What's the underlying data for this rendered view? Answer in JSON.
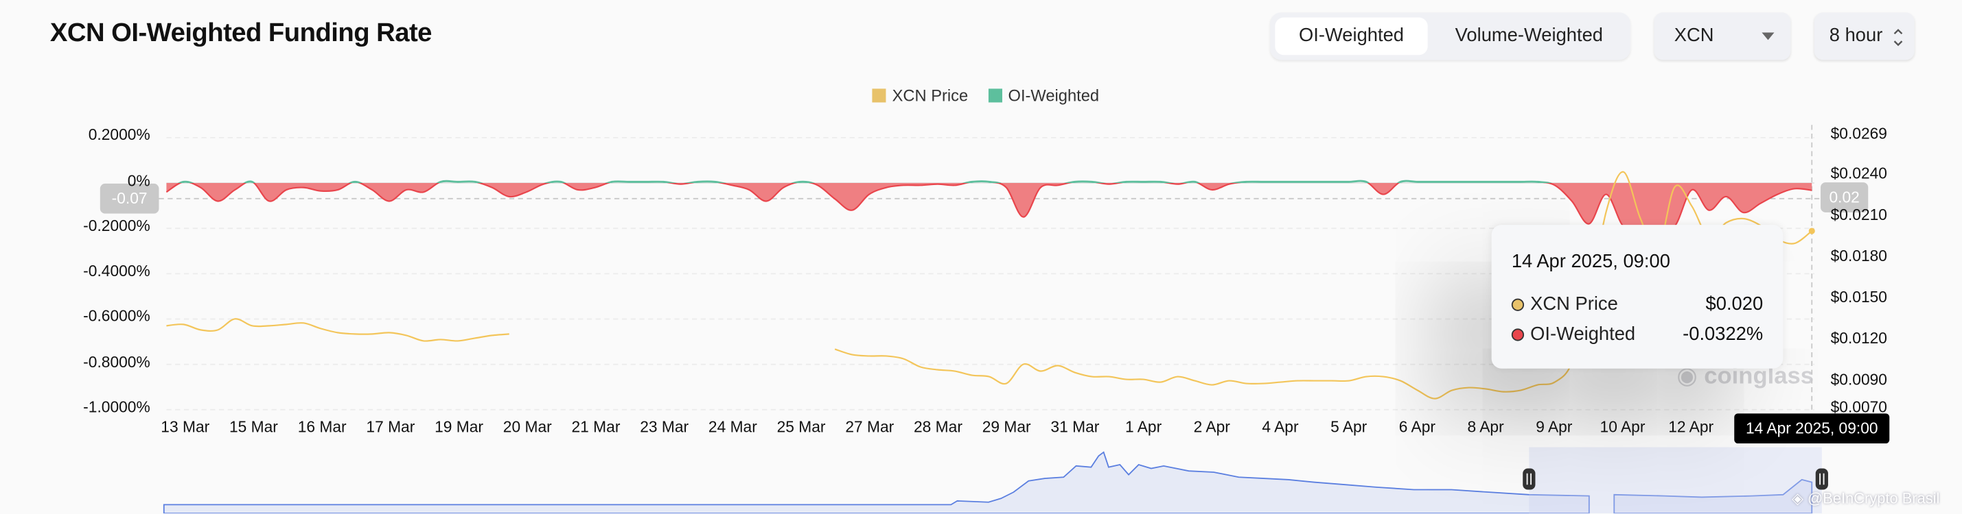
{
  "header": {
    "title": "XCN OI-Weighted Funding Rate",
    "toggle": {
      "options": [
        "OI-Weighted",
        "Volume-Weighted"
      ],
      "active": "OI-Weighted"
    },
    "symbol_select": {
      "value": "XCN",
      "icon": "caret-down-icon"
    },
    "interval_select": {
      "value": "8 hour",
      "icon": "updown-chevron-icon"
    }
  },
  "colors": {
    "price": "#f3c55a",
    "positive": "#5dbf9d",
    "negative": "#e9454c",
    "negative_fill": "#ef7f82",
    "navigator": "#5b7fe0"
  },
  "crosshair": {
    "left_value": "-0.07",
    "right_value": "0.02",
    "x_label": "14 Apr 2025, 09:00"
  },
  "tooltip": {
    "title": "14 Apr 2025, 09:00",
    "rows": [
      {
        "label": "XCN Price",
        "value": "$0.020",
        "color": "#f3c55a"
      },
      {
        "label": "OI-Weighted",
        "value": "-0.0322%",
        "color": "#e9454c"
      }
    ]
  },
  "watermarks": {
    "coinglass": "coinglass",
    "beincrypto": "@BeInCrypto Brasil"
  },
  "chart_data": {
    "type": "area+line",
    "legend": [
      "XCN Price",
      "OI-Weighted"
    ],
    "legend_position": "top",
    "grid": true,
    "x_ticks": [
      "13 Mar",
      "15 Mar",
      "16 Mar",
      "17 Mar",
      "19 Mar",
      "20 Mar",
      "21 Mar",
      "23 Mar",
      "24 Mar",
      "25 Mar",
      "27 Mar",
      "28 Mar",
      "29 Mar",
      "31 Mar",
      "1 Apr",
      "2 Apr",
      "4 Apr",
      "5 Apr",
      "6 Apr",
      "8 Apr",
      "9 Apr",
      "10 Apr",
      "12 Apr"
    ],
    "y_left": {
      "ticks": [
        "0.2000%",
        "0%",
        "-0.2000%",
        "-0.4000%",
        "-0.6000%",
        "-0.8000%",
        "-1.0000%"
      ],
      "range": [
        -1.0,
        0.2
      ]
    },
    "y_right": {
      "ticks": [
        "$0.0269",
        "$0.0240",
        "$0.0210",
        "$0.0180",
        "$0.0150",
        "$0.0120",
        "$0.0090",
        "$0.0070"
      ],
      "range": [
        0.007,
        0.0269
      ]
    },
    "series": [
      {
        "name": "OI-Weighted",
        "axis": "left",
        "unit": "%",
        "values": [
          -0.04,
          0.005,
          -0.02,
          -0.08,
          -0.03,
          0.005,
          -0.08,
          -0.03,
          -0.02,
          -0.035,
          -0.03,
          0.005,
          -0.03,
          -0.08,
          -0.03,
          -0.04,
          0.005,
          0.005,
          0.005,
          -0.02,
          -0.06,
          -0.04,
          -0.005,
          0.005,
          -0.03,
          -0.02,
          0.005,
          0.005,
          0.005,
          0.005,
          -0.005,
          0.005,
          0.005,
          -0.01,
          -0.03,
          -0.08,
          -0.02,
          0.005,
          -0.01,
          -0.07,
          -0.12,
          -0.05,
          -0.02,
          -0.01,
          -0.01,
          -0.005,
          -0.01,
          0.005,
          0.005,
          -0.02,
          -0.15,
          -0.02,
          -0.01,
          0.005,
          0.005,
          -0.005,
          0.005,
          0.005,
          0.005,
          -0.005,
          0.005,
          -0.03,
          -0.005,
          0.005,
          0.005,
          0.005,
          0.005,
          0.005,
          0.005,
          0.005,
          0.005,
          -0.05,
          0.005,
          0.005,
          0.005,
          0.005,
          0.005,
          0.005,
          0.005,
          0.005,
          0.005,
          -0.01,
          -0.08,
          -0.18,
          -0.05,
          -0.19,
          -0.19,
          -0.19,
          -0.19,
          -0.03,
          -0.12,
          -0.06,
          -0.13,
          -0.09,
          -0.05,
          -0.025,
          -0.0322
        ]
      },
      {
        "name": "XCN Price",
        "axis": "right",
        "unit": "$",
        "values": [
          0.0131,
          0.0132,
          0.0128,
          0.0128,
          0.0136,
          0.0131,
          0.0131,
          0.0132,
          0.0133,
          0.0129,
          0.0126,
          0.0125,
          0.0125,
          0.0126,
          0.0124,
          0.012,
          0.0121,
          0.012,
          0.0122,
          0.0124,
          0.0125,
          null,
          null,
          null,
          null,
          null,
          null,
          null,
          null,
          null,
          null,
          null,
          null,
          null,
          null,
          null,
          null,
          null,
          null,
          0.0114,
          0.011,
          0.0109,
          0.0109,
          0.0107,
          0.0101,
          0.0099,
          0.0098,
          0.0095,
          0.0094,
          0.0089,
          0.0103,
          0.0098,
          0.0102,
          0.0097,
          0.0094,
          0.0094,
          0.0092,
          0.0092,
          0.009,
          0.0094,
          0.0091,
          0.0088,
          0.0091,
          0.0089,
          0.0089,
          0.009,
          0.0091,
          0.0091,
          0.0091,
          0.0091,
          0.0094,
          0.0094,
          0.0091,
          0.0084,
          0.0078,
          0.0084,
          0.0086,
          0.0085,
          0.0083,
          0.0084,
          0.0088,
          0.009,
          0.0104,
          0.015,
          0.0214,
          0.0243,
          0.0209,
          0.0186,
          0.0232,
          0.0218,
          0.0195,
          0.0206,
          0.0209,
          0.0204,
          0.0194,
          0.0191,
          0.02
        ]
      }
    ]
  }
}
